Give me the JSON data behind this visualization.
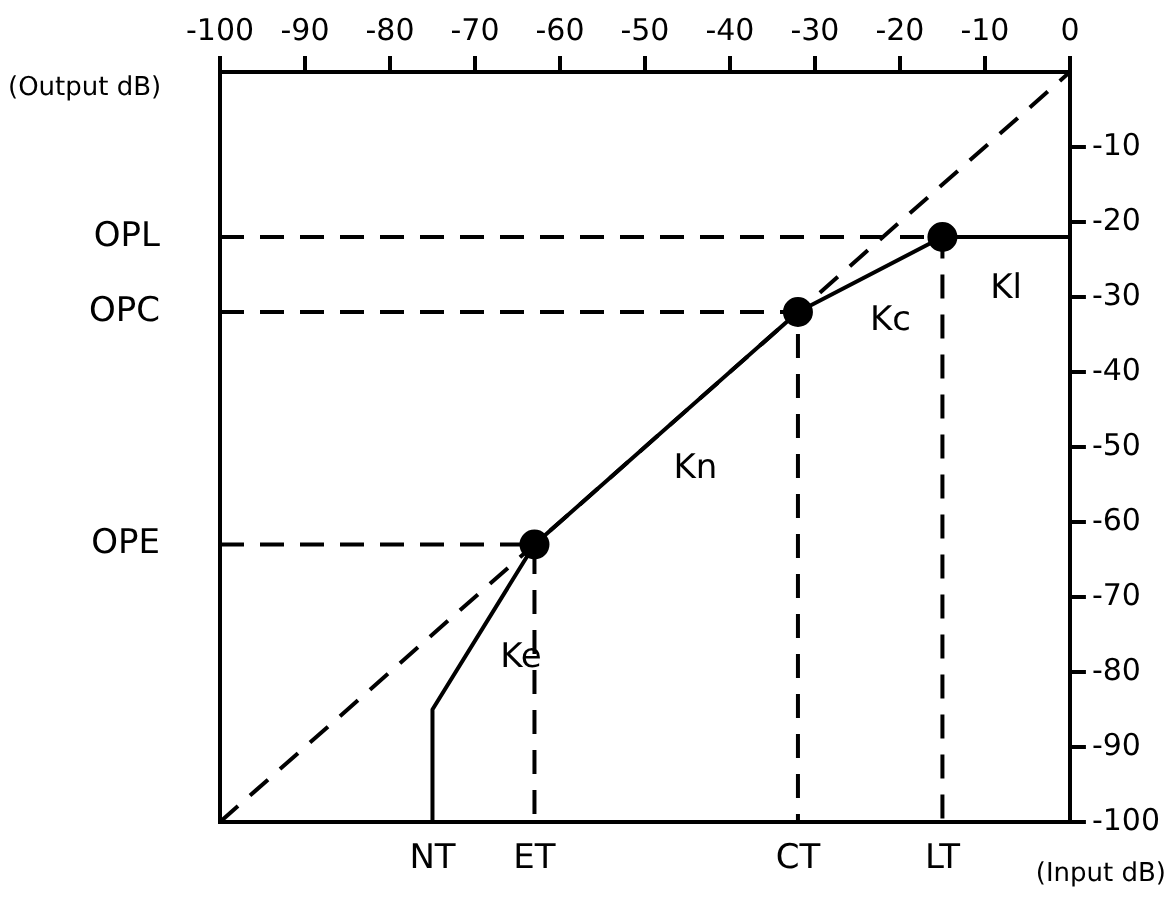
{
  "chart_data": {
    "type": "line",
    "xlabel": "(Input dB)",
    "ylabel": "(Output dB)",
    "xlim": [
      -100,
      0
    ],
    "xticks": [
      -100,
      -90,
      -80,
      -70,
      -60,
      -50,
      -40,
      -30,
      -20,
      -10,
      0
    ],
    "ylim": [
      -100,
      0
    ],
    "yticks": [
      -100,
      -90,
      -80,
      -70,
      -60,
      -50,
      -40,
      -30,
      -20,
      -10
    ],
    "grid": false,
    "legend": false,
    "series": [
      {
        "color": "#000000",
        "line_style": "dashed",
        "x": [
          -100,
          0
        ],
        "values": [
          -100,
          0
        ]
      },
      {
        "type": "line",
        "color": "#000000",
        "line_style": "dashed",
        "x": [
          -100,
          -15,
          -15
        ],
        "values": [
          -22,
          -22,
          -100
        ]
      },
      {
        "type": "line",
        "color": "#000000",
        "line_style": "dashed",
        "x": [
          -100,
          -32,
          -32
        ],
        "values": [
          -32,
          -32,
          -100
        ]
      },
      {
        "type": "line",
        "color": "#000000",
        "line_style": "dashed",
        "x": [
          -100,
          -63,
          -63
        ],
        "values": [
          -63,
          -63,
          -100
        ]
      },
      {
        "color": "#000000",
        "line_style": "solid",
        "x": [
          -75,
          -75,
          -63,
          -32,
          -15,
          0
        ],
        "values": [
          -100,
          -85,
          -63,
          -32,
          -22,
          -22
        ]
      },
      {
        "type": "scatter",
        "color": "#000000",
        "marker": "circle",
        "x": [
          -63,
          -32,
          -15
        ],
        "values": [
          -63,
          -32,
          -22
        ]
      }
    ],
    "annotations": [
      {
        "text": "NT",
        "x": -75,
        "y": -100
      },
      {
        "text": "ET",
        "x": -63,
        "y": -100
      },
      {
        "text": "CT",
        "x": -32,
        "y": -100
      },
      {
        "text": "LT",
        "x": -15,
        "y": -100
      },
      {
        "text": "OPL",
        "x": -100,
        "y": -22
      },
      {
        "text": "OPC",
        "x": -100,
        "y": -32
      },
      {
        "text": "OPE",
        "x": -100,
        "y": -63
      },
      "Ke",
      "Kn",
      "Kc",
      "Kl"
    ]
  }
}
